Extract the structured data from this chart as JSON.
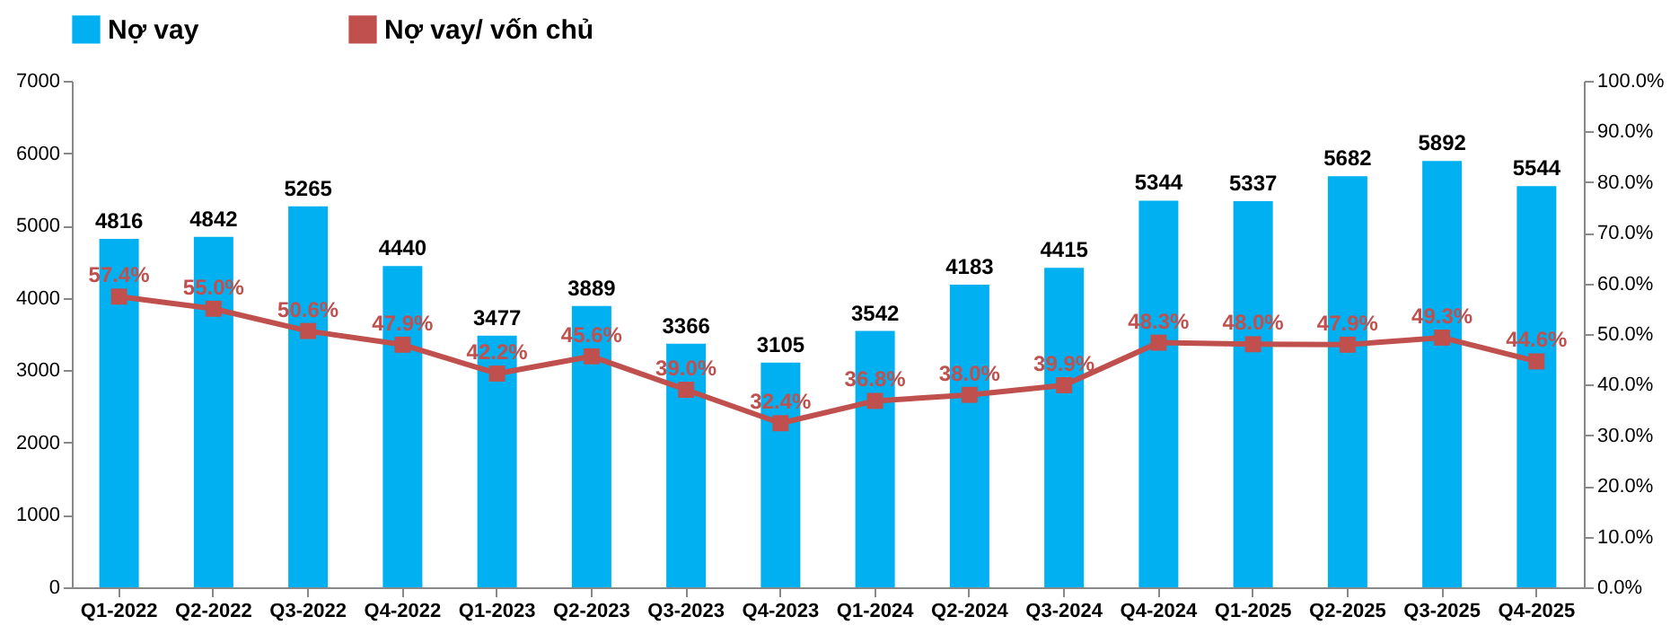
{
  "chart_data": {
    "type": "bar",
    "categories": [
      "Q1-2022",
      "Q2-2022",
      "Q3-2022",
      "Q4-2022",
      "Q1-2023",
      "Q2-2023",
      "Q3-2023",
      "Q4-2023",
      "Q1-2024",
      "Q2-2024",
      "Q3-2024",
      "Q4-2024",
      "Q1-2025",
      "Q2-2025",
      "Q3-2025",
      "Q4-2025"
    ],
    "series": [
      {
        "name": "Nợ vay",
        "color": "#00b0f0",
        "values": [
          4816,
          4842,
          5265,
          4440,
          3477,
          3889,
          3366,
          3105,
          3542,
          4183,
          4415,
          5344,
          5337,
          5682,
          5892,
          5544
        ],
        "value_labels": [
          "4816",
          "4842",
          "5265",
          "4440",
          "3477",
          "3889",
          "3366",
          "3105",
          "3542",
          "4183",
          "4415",
          "5344",
          "5337",
          "5682",
          "5892",
          "5544"
        ]
      },
      {
        "name": "Nợ vay/ vốn chủ",
        "type": "line",
        "axis": "y2",
        "color": "#c0504d",
        "marker": "square",
        "values": [
          57.4,
          55.0,
          50.6,
          47.9,
          42.2,
          45.6,
          39.0,
          32.4,
          36.8,
          38.0,
          39.9,
          48.3,
          48.0,
          47.9,
          49.3,
          44.6
        ],
        "value_labels": [
          "57.4%",
          "55.0%",
          "50.6%",
          "47.9%",
          "42.2%",
          "45.6%",
          "39.0%",
          "32.4%",
          "36.8%",
          "38.0%",
          "39.9%",
          "48.3%",
          "48.0%",
          "47.9%",
          "49.3%",
          "44.6%"
        ]
      }
    ],
    "ylim": [
      0,
      7000
    ],
    "yticks": [
      0,
      1000,
      2000,
      3000,
      4000,
      5000,
      6000,
      7000
    ],
    "y2lim": [
      0,
      100
    ],
    "y2ticks": [
      {
        "value": 0,
        "label": "0.0%"
      },
      {
        "value": 10,
        "label": "10.0%"
      },
      {
        "value": 20,
        "label": "20.0%"
      },
      {
        "value": 30,
        "label": "30.0%"
      },
      {
        "value": 40,
        "label": "40.0%"
      },
      {
        "value": 50,
        "label": "50.0%"
      },
      {
        "value": 60,
        "label": "60.0%"
      },
      {
        "value": 70,
        "label": "70.0%"
      },
      {
        "value": 80,
        "label": "80.0%"
      },
      {
        "value": 90,
        "label": "90.0%"
      },
      {
        "value": 100,
        "label": "100.0%"
      }
    ],
    "grid": false,
    "legend": "top"
  }
}
